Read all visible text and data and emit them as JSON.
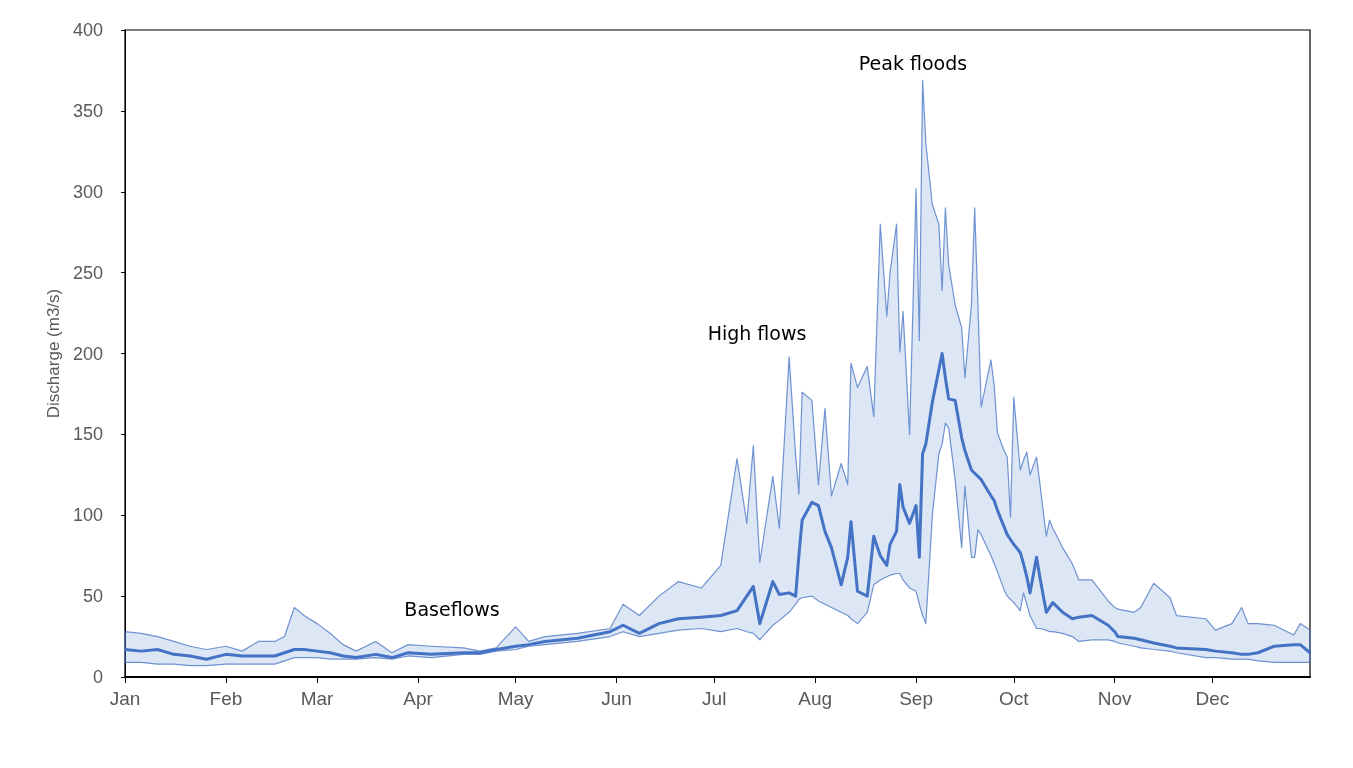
{
  "chart_data": {
    "type": "line",
    "ylabel": "Discharge (m3/s)",
    "ylim": [
      0,
      400
    ],
    "yticks": [
      0,
      50,
      100,
      150,
      200,
      250,
      300,
      350,
      400
    ],
    "xlim": [
      "--01-01",
      "--12-31"
    ],
    "xticks": [
      {
        "value": "--01-01",
        "label": "Jan"
      },
      {
        "value": "--02-01",
        "label": "Feb"
      },
      {
        "value": "--03-01",
        "label": "Mar"
      },
      {
        "value": "--04-01",
        "label": "Apr"
      },
      {
        "value": "--05-01",
        "label": "May"
      },
      {
        "value": "--06-01",
        "label": "Jun"
      },
      {
        "value": "--07-01",
        "label": "Jul"
      },
      {
        "value": "--08-01",
        "label": "Aug"
      },
      {
        "value": "--09-01",
        "label": "Sep"
      },
      {
        "value": "--10-01",
        "label": "Oct"
      },
      {
        "value": "--11-01",
        "label": "Nov"
      },
      {
        "value": "--12-01",
        "label": "Dec"
      }
    ],
    "grid": false,
    "marker": "none",
    "line_style": "solid",
    "annotations": [
      "Peak floods",
      "High flows",
      "Baseflows"
    ],
    "series": [
      {
        "color": "#4472c4",
        "x": [
          "--01-01",
          "--01-06",
          "--01-11",
          "--01-16",
          "--01-21",
          "--01-26",
          "--02-01",
          "--02-06",
          "--02-11",
          "--02-16",
          "--02-19",
          "--02-22",
          "--02-25",
          "--03-01",
          "--03-05",
          "--03-09",
          "--03-13",
          "--03-19",
          "--03-24",
          "--03-29",
          "--04-05",
          "--04-15",
          "--04-20",
          "--04-25",
          "--05-01",
          "--05-05",
          "--05-10",
          "--05-20",
          "--05-30",
          "--06-03",
          "--06-08",
          "--06-14",
          "--06-20",
          "--06-27",
          "--07-03",
          "--07-08",
          "--07-11",
          "--07-13",
          "--07-15",
          "--07-19",
          "--07-21",
          "--07-24",
          "--07-26",
          "--07-27",
          "--07-28",
          "--07-31",
          "--08-02",
          "--08-04",
          "--08-06",
          "--08-09",
          "--08-11",
          "--08-12",
          "--08-14",
          "--08-17",
          "--08-19",
          "--08-21",
          "--08-23",
          "--08-24",
          "--08-26",
          "--08-27",
          "--08-28",
          "--08-30",
          "--09-01",
          "--09-02",
          "--09-03",
          "--09-04",
          "--09-06",
          "--09-08",
          "--09-09",
          "--09-10",
          "--09-11",
          "--09-13",
          "--09-15",
          "--09-16",
          "--09-18",
          "--09-19",
          "--09-20",
          "--09-21",
          "--09-24",
          "--09-25",
          "--09-26",
          "--09-28",
          "--09-29",
          "--09-30",
          "--10-01",
          "--10-03",
          "--10-04",
          "--10-05",
          "--10-06",
          "--10-08",
          "--10-09",
          "--10-11",
          "--10-12",
          "--10-13",
          "--10-16",
          "--10-19",
          "--10-21",
          "--10-25",
          "--10-30",
          "--11-01",
          "--11-02",
          "--11-07",
          "--11-09",
          "--11-13",
          "--11-18",
          "--11-20",
          "--11-29",
          "--12-02",
          "--12-07",
          "--12-10",
          "--12-12",
          "--12-15",
          "--12-20",
          "--12-26",
          "--12-28",
          "--12-31"
        ],
        "values": [
          17,
          16,
          17,
          14,
          13,
          11,
          14,
          13,
          13,
          13,
          15,
          17,
          17,
          16,
          15,
          13,
          12,
          14,
          12,
          15,
          14,
          15,
          15,
          17,
          19,
          20,
          22,
          24,
          28,
          32,
          27,
          33,
          36,
          37,
          38,
          41,
          50,
          56,
          33,
          59,
          51,
          52,
          50,
          75,
          97,
          108,
          106,
          90,
          80,
          57,
          74,
          96,
          53,
          50,
          87,
          75,
          69,
          82,
          90,
          119,
          105,
          95,
          106,
          74,
          138,
          144,
          170,
          190,
          200,
          185,
          172,
          171,
          148,
          140,
          128,
          126,
          124,
          122,
          112,
          109,
          103,
          93,
          88,
          85,
          82,
          77,
          70,
          62,
          52,
          74,
          62,
          40,
          43,
          46,
          40,
          36,
          37,
          38,
          32,
          28,
          25,
          24,
          23,
          21,
          19,
          18,
          17,
          16,
          15,
          14,
          14,
          15,
          19,
          20,
          20,
          15
        ],
        "upper": [
          28,
          27,
          25,
          22,
          19,
          17,
          19,
          16,
          22,
          22,
          25,
          43,
          38,
          33,
          27,
          20,
          16,
          22,
          15,
          20,
          19,
          18,
          16,
          18,
          31,
          22,
          25,
          27,
          30,
          45,
          38,
          50,
          59,
          55,
          69,
          135,
          95,
          143,
          71,
          124,
          92,
          198,
          137,
          113,
          176,
          171,
          119,
          166,
          112,
          132,
          119,
          194,
          179,
          192,
          161,
          280,
          223,
          250,
          280,
          201,
          226,
          150,
          302,
          208,
          369,
          330,
          292,
          280,
          239,
          290,
          255,
          230,
          216,
          185,
          230,
          290,
          230,
          167,
          196,
          180,
          151,
          140,
          136,
          99,
          173,
          128,
          134,
          139,
          125,
          136,
          120,
          87,
          97,
          92,
          80,
          70,
          60,
          60,
          47,
          43,
          42,
          40,
          43,
          58,
          49,
          38,
          36,
          29,
          33,
          43,
          33,
          33,
          32,
          26,
          33,
          29
        ],
        "lower": [
          9,
          9,
          8,
          8,
          7,
          7,
          8,
          8,
          8,
          8,
          10,
          12,
          12,
          12,
          11,
          11,
          11,
          12,
          11,
          13,
          12,
          14,
          14,
          16,
          17,
          19,
          20,
          22,
          25,
          28,
          25,
          27,
          29,
          30,
          28,
          30,
          28,
          27,
          23,
          32,
          35,
          40,
          45,
          48,
          49,
          50,
          47,
          45,
          43,
          40,
          38,
          36,
          33,
          40,
          57,
          60,
          62,
          63,
          64,
          64,
          60,
          55,
          53,
          45,
          38,
          33,
          100,
          138,
          144,
          157,
          154,
          122,
          80,
          118,
          74,
          74,
          91,
          88,
          75,
          70,
          65,
          54,
          50,
          48,
          46,
          41,
          52,
          45,
          38,
          30,
          30,
          29,
          28,
          28,
          27,
          25,
          22,
          23,
          23,
          22,
          21,
          19,
          18,
          17,
          16,
          15,
          12,
          12,
          11,
          11,
          11,
          10,
          9,
          9,
          9,
          9
        ]
      }
    ]
  }
}
